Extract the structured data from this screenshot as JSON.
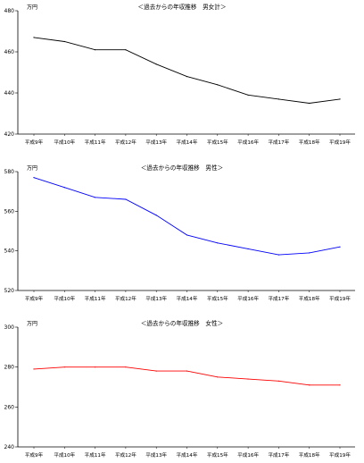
{
  "chart_data": [
    {
      "type": "line",
      "title": "＜過去からの年収推移　男女計＞",
      "ylabel": "万円",
      "categories": [
        "平成9年",
        "平成10年",
        "平成11年",
        "平成12年",
        "平成13年",
        "平成14年",
        "平成15年",
        "平成16年",
        "平成17年",
        "平成18年",
        "平成19年"
      ],
      "series": [
        {
          "values": [
            467,
            465,
            461,
            461,
            454,
            448,
            444,
            439,
            437,
            435,
            437
          ],
          "color": "#000000"
        }
      ],
      "ylim": [
        420,
        480
      ],
      "yticks": [
        420,
        440,
        460,
        480
      ],
      "grid": false
    },
    {
      "type": "line",
      "title": "＜過去からの年収推移　男性＞",
      "ylabel": "万円",
      "categories": [
        "平成9年",
        "平成10年",
        "平成11年",
        "平成12年",
        "平成13年",
        "平成14年",
        "平成15年",
        "平成16年",
        "平成17年",
        "平成18年",
        "平成19年"
      ],
      "series": [
        {
          "values": [
            577,
            572,
            567,
            566,
            558,
            548,
            544,
            541,
            538,
            539,
            542
          ],
          "color": "#0000ff"
        }
      ],
      "ylim": [
        520,
        580
      ],
      "yticks": [
        520,
        540,
        560,
        580
      ],
      "grid": false
    },
    {
      "type": "line",
      "title": "＜過去からの年収推移　女性＞",
      "ylabel": "万円",
      "categories": [
        "平成9年",
        "平成10年",
        "平成11年",
        "平成12年",
        "平成13年",
        "平成14年",
        "平成15年",
        "平成16年",
        "平成17年",
        "平成18年",
        "平成19年"
      ],
      "series": [
        {
          "values": [
            279,
            280,
            280,
            280,
            278,
            278,
            275,
            274,
            273,
            271,
            271
          ],
          "color": "#ff0000"
        }
      ],
      "ylim": [
        240,
        300
      ],
      "yticks": [
        240,
        260,
        280,
        300
      ],
      "grid": false
    }
  ]
}
